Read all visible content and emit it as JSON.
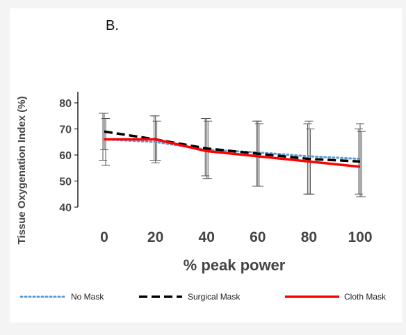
{
  "panel_label": "B.",
  "chart_data": {
    "type": "line",
    "title": "",
    "xlabel": "% peak power",
    "ylabel": "Tissue Oxygenation Index  (%)",
    "x": [
      0,
      20,
      40,
      60,
      80,
      100
    ],
    "xticks": [
      "0",
      "20",
      "40",
      "60",
      "80",
      "100"
    ],
    "yticks": [
      "40",
      "50",
      "60",
      "70",
      "80"
    ],
    "xlim": [
      -10,
      107
    ],
    "ylim": [
      40,
      84
    ],
    "grid": false,
    "legend_position": "bottom",
    "series": [
      {
        "name": "No Mask",
        "color": "#5b9bd5",
        "style": "dotted",
        "values": [
          66,
          65,
          62,
          61,
          59.5,
          58.5
        ],
        "error_upper": [
          76,
          75,
          74,
          73,
          72,
          70
        ],
        "error_lower": [
          58,
          58,
          52,
          48,
          45,
          45
        ]
      },
      {
        "name": "Surgical Mask",
        "color": "#000000",
        "style": "dashed",
        "values": [
          69,
          66,
          62.5,
          60.5,
          58.5,
          57.5
        ],
        "error_upper": [
          76,
          75,
          74,
          73,
          73,
          72
        ],
        "error_lower": [
          62,
          57,
          51,
          48,
          45,
          44
        ]
      },
      {
        "name": "Cloth Mask",
        "color": "#ff0000",
        "style": "solid",
        "values": [
          66,
          66,
          61.5,
          59.5,
          57.5,
          55.5
        ],
        "error_upper": [
          74,
          73,
          73,
          72,
          70,
          69
        ],
        "error_lower": [
          56,
          58,
          51,
          48,
          45,
          44
        ]
      }
    ]
  }
}
